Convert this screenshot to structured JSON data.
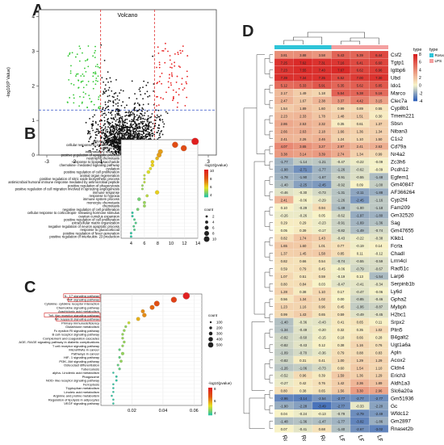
{
  "panels": {
    "a": "A",
    "b": "B",
    "c": "C",
    "d": "D"
  },
  "chart_data": [
    {
      "type": "scatter",
      "panel": "A",
      "title": "Volcano",
      "xlabel": "",
      "ylabel": "-log10(P Value)",
      "xlim": [
        -3.3,
        3.3
      ],
      "ylim": [
        0,
        4.2
      ],
      "x_ticks": [
        -3,
        -2,
        -1,
        0,
        1,
        2,
        3
      ],
      "y_ticks": [
        0,
        1,
        2,
        3,
        4
      ],
      "fc_threshold": [
        -1,
        1
      ],
      "p_threshold": 1.3,
      "groups": [
        {
          "name": "down",
          "color": "#32c832"
        },
        {
          "name": "none",
          "color": "#111111"
        },
        {
          "name": "up",
          "color": "#e82020"
        }
      ]
    },
    {
      "type": "scatter",
      "panel": "B",
      "xlim": [
        2.5,
        14
      ],
      "x_ticks": [
        4,
        6,
        8,
        10,
        12,
        14
      ],
      "categories": [
        "defense response",
        "cellular response to interferon- beta",
        "angiogenesis",
        "inflammatory response",
        "positive regulation of apoptotic process",
        "neutrophil chemotaxis",
        "response to lipopolysaccharide",
        "chemokine- mediated signaling pathway",
        "ovulation",
        "positive regulation of cell proliferation",
        "animal organ regeneration",
        "positive regulation of nitric oxide biosynthetic process",
        "antimicrobial humoral immune response mediated by antimicrobial peptide",
        "positive regulation of phagocytosis",
        "positive regulation of cell migration involved in sprouting angiogenesis",
        "immune response",
        "response to hypoxia",
        "immune system process",
        "monocyte chemotaxis",
        "chemotaxis",
        "negative regulation of cell proliferation",
        "cellular response to corticotropin- releasing hormone stimulus",
        "ovarian cumulus expansion",
        "positive regulation of cell proliferation",
        "extracellular matrix organization",
        "negative regulation of neuron apoptotic process",
        "response to glucocorticoid",
        "positive regulation of fever generation",
        "positive regulation of interleukin- 23 production"
      ],
      "x": [
        13.6,
        10.6,
        11.9,
        8.4,
        8.2,
        7.9,
        7.2,
        7.2,
        6.9,
        6.6,
        6.0,
        6.0,
        6.0,
        5.7,
        5.7,
        7.9,
        6.4,
        5.2,
        6.0,
        6.0,
        5.0,
        4.2,
        4.2,
        4.5,
        4.7,
        4.4,
        4.5,
        4.0,
        4.0
      ],
      "size": [
        10,
        8,
        8,
        6,
        6,
        4,
        4,
        4,
        3,
        4,
        2,
        2,
        2,
        2,
        2,
        5,
        3,
        4,
        3,
        3,
        3,
        2,
        2,
        2,
        2,
        2,
        2,
        2,
        2
      ],
      "color_value": [
        12,
        10,
        10,
        8,
        8,
        7.5,
        7,
        7,
        6.5,
        6.5,
        6,
        6,
        6,
        5.5,
        5.5,
        7,
        6,
        5,
        5.5,
        5.5,
        5,
        4,
        4,
        4.5,
        4.5,
        4.5,
        4.5,
        4,
        4
      ],
      "legend_color_title": "-log10(pvalue)",
      "legend_color_ticks": [
        10,
        8,
        6,
        4
      ],
      "legend_size_title": "count",
      "legend_size_ticks": [
        2,
        4,
        6,
        8,
        10
      ],
      "colormap": [
        "#2ec4a0",
        "#e8e020",
        "#e05a10",
        "#e02020"
      ]
    },
    {
      "type": "scatter",
      "panel": "C",
      "xlim": [
        0.0,
        0.065
      ],
      "x_ticks": [
        0.02,
        0.04,
        0.06
      ],
      "categories": [
        "IL- 17 signaling pathway",
        "TNF signaling pathway",
        "Cytokine- cytokine receptor interaction",
        "Chemokine signaling pathway",
        "Arachidonic acid metabolism",
        "Toll- like receptor signaling pathway",
        "NF- kappa B signaling pathway",
        "Primary immunodeficiency",
        "Glutathione metabolism",
        "Fc epsilon RI signaling pathway",
        "B cell receptor signaling pathway",
        "Complement and coagulation cascades",
        "AGE- RAGE signaling pathway in diabetic complications",
        "T cell receptor signaling pathway",
        "MicroRNAs in cancer",
        "Pathways in cancer",
        "HIF- 1 signaling pathway",
        "PI3K- Akt signaling pathway",
        "Osteoclast differentiation",
        "Tuberculosis",
        "alpha- Linolenic acid metabolism",
        "Phagosome",
        "NOD- like receptor signaling pathway",
        "Ferroptosis",
        "Tryptophan metabolism",
        "Linoleic acid metabolism",
        "Arginine and proline metabolism",
        "Regulation of lipolysis in adipocytes",
        "VEGF signaling pathway"
      ],
      "x": [
        0.055,
        0.047,
        0.036,
        0.033,
        0.027,
        0.028,
        0.024,
        0.018,
        0.016,
        0.015,
        0.014,
        0.014,
        0.015,
        0.014,
        0.012,
        0.014,
        0.012,
        0.013,
        0.011,
        0.012,
        0.008,
        0.01,
        0.01,
        0.008,
        0.008,
        0.008,
        0.007,
        0.008,
        0.008
      ],
      "size": [
        500,
        400,
        380,
        300,
        220,
        260,
        220,
        120,
        100,
        110,
        100,
        100,
        110,
        100,
        90,
        160,
        90,
        130,
        80,
        100,
        50,
        70,
        70,
        50,
        50,
        50,
        50,
        50,
        50
      ],
      "color_value": [
        9,
        8,
        7.5,
        7,
        6.5,
        6.5,
        6,
        5,
        4.5,
        4.5,
        4.5,
        4.5,
        4.5,
        4.5,
        4,
        4.5,
        4,
        4.5,
        4,
        4,
        3.5,
        3.5,
        3.5,
        3.5,
        3.5,
        3.5,
        3.5,
        3.5,
        3.5
      ],
      "highlighted": [
        0,
        1,
        5,
        6
      ],
      "legend_size_title": "count",
      "legend_size_ticks": [
        100,
        200,
        300,
        400,
        500
      ],
      "legend_color_title": "-log10(pvalue)",
      "legend_color_ticks": [
        8,
        6,
        4
      ],
      "colormap": [
        "#2ec4a0",
        "#e8e020",
        "#e05a10",
        "#e02020"
      ]
    },
    {
      "type": "heatmap",
      "panel": "D",
      "columns": [
        "Rosvain",
        "Rosvain",
        "Rosvain",
        "LPS_2",
        "LPS_1",
        "LPS_3"
      ],
      "column_groups": [
        "Rosvain",
        "Rosvain",
        "Rosvain",
        "LPS",
        "LPS",
        "LPS"
      ],
      "legend_type_title": "type",
      "legend_types": [
        {
          "name": "Rosvain",
          "color": "#2ec4d8"
        },
        {
          "name": "LPS",
          "color": "#f4a0a0"
        }
      ],
      "color_scale_ticks": [
        8,
        6,
        4,
        2,
        0,
        -2,
        -4
      ],
      "color_scale": {
        "min": -4,
        "mid": 0,
        "max": 8,
        "low": "#3060b8",
        "midc": "#f8f4c8",
        "high": "#d82020"
      },
      "rows": [
        {
          "gene": "Csf2",
          "values": [
            3.81,
            3.88,
            3.58,
            5.43,
            5.39,
            6.44
          ]
        },
        {
          "gene": "Tgtp1",
          "values": [
            7.25,
            7.62,
            7.31,
            7.16,
            6.41,
            6.6
          ]
        },
        {
          "gene": "Igtbp6",
          "values": [
            7.23,
            7.55,
            7.4,
            7.67,
            6.62,
            6.96
          ]
        },
        {
          "gene": "Ubd",
          "values": [
            7.39,
            7.34,
            7.35,
            6.52,
            7.0,
            7.3
          ]
        },
        {
          "gene": "Ido1",
          "values": [
            5.12,
            5.33,
            5.91,
            5.35,
            5.62,
            5.85
          ]
        },
        {
          "gene": "Marco",
          "values": [
            2.17,
            1.49,
            1.18,
            5.54,
            5.38,
            5.16
          ]
        },
        {
          "gene": "Clec7a",
          "values": [
            2.47,
            1.67,
            2.38,
            3.37,
            4.42,
            3.15
          ]
        },
        {
          "gene": "Cyp8b1",
          "values": [
            1.54,
            1.89,
            1.6,
            0.99,
            0.89,
            0.55
          ]
        },
        {
          "gene": "Tmem221",
          "values": [
            2.23,
            2.33,
            1.78,
            1.48,
            1.51,
            0.3
          ]
        },
        {
          "gene": "Sbsn",
          "values": [
            2.86,
            2.53,
            2.32,
            0.35,
            0.61,
            1.37
          ]
        },
        {
          "gene": "Niban3",
          "values": [
            2.66,
            2.63,
            2.18,
            1.66,
            1.36,
            1.34
          ]
        },
        {
          "gene": "C1s2",
          "values": [
            2.41,
            2.26,
            2.46,
            1.24,
            1.1,
            1.5
          ]
        },
        {
          "gene": "Cd79a",
          "values": [
            4.07,
            3.65,
            3.27,
            2.97,
            2.41,
            2.63
          ]
        },
        {
          "gene": "Nr4a2",
          "values": [
            3.38,
            3.14,
            3.39,
            2.74,
            1.34,
            0.99
          ]
        },
        {
          "gene": "Zc3h6",
          "values": [
            -1.77,
            -1.14,
            -1.21,
            -0.47,
            -0.22,
            -0.09
          ]
        },
        {
          "gene": "Pcdh12",
          "values": [
            -1.98,
            -2.71,
            -1.77,
            -1.26,
            -0.62,
            -0.09
          ]
        },
        {
          "gene": "Egfem1",
          "values": [
            -1.78,
            -1.9,
            -1.67,
            -0.91,
            -0.55,
            -1.48
          ]
        },
        {
          "gene": "Gm40847",
          "values": [
            -1.4,
            -2.25,
            -2.45,
            -0.92,
            0.09,
            -1.0
          ]
        },
        {
          "gene": "AF366264",
          "values": [
            -0.46,
            -0.3,
            -0.73,
            -1.31,
            -2.11,
            -1.88
          ]
        },
        {
          "gene": "Cyp2f4",
          "values": [
            2.41,
            -0.06,
            -0.29,
            -1.26,
            -2.45,
            -1.16
          ]
        },
        {
          "gene": "Fam209",
          "values": [
            0.1,
            -0.29,
            0.94,
            -1.49,
            -1.0,
            -1.18
          ]
        },
        {
          "gene": "Gm32520",
          "values": [
            -0.26,
            -0.26,
            0.05,
            -0.62,
            -1.97,
            -1.8
          ]
        },
        {
          "gene": "Sag",
          "values": [
            0.29,
            0.29,
            -0.23,
            -0.91,
            -1.69,
            -1.36
          ]
        },
        {
          "gene": "Gm47655",
          "values": [
            0.05,
            0.39,
            -0.17,
            -0.82,
            -1.49,
            -0.74
          ]
        },
        {
          "gene": "Klkb1",
          "values": [
            0.82,
            1.74,
            1.43,
            -0.43,
            -0.22,
            -0.38
          ]
        },
        {
          "gene": "Fcrla",
          "values": [
            1.65,
            1.6,
            1.01,
            0.77,
            -0.19,
            0.14
          ]
        },
        {
          "gene": "Chadl",
          "values": [
            1.37,
            1.45,
            1.58,
            0.85,
            0.11,
            -0.12
          ]
        },
        {
          "gene": "Lrrn4cl",
          "values": [
            0.82,
            0.66,
            0.54,
            -0.74,
            -0.55,
            -0.59
          ]
        },
        {
          "gene": "Rad51c",
          "values": [
            0.59,
            0.79,
            0.45,
            -0.06,
            -0.79,
            -0.67
          ]
        },
        {
          "gene": "Larp6",
          "values": [
            1.07,
            0.51,
            0.59,
            -0.19,
            0.13,
            -1.54
          ]
        },
        {
          "gene": "Serpinb1b",
          "values": [
            0.8,
            0.84,
            0.03,
            -0.47,
            -0.41,
            -0.34
          ]
        },
        {
          "gene": "Ly6d",
          "values": [
            1.28,
            0.38,
            1.1,
            0.17,
            -0.47,
            -0.06
          ]
        },
        {
          "gene": "Gpha2",
          "values": [
            0.56,
            1.34,
            1.02,
            0.0,
            -0.85,
            -0.46
          ]
        },
        {
          "gene": "Mybph",
          "values": [
            1.23,
            1.16,
            0.96,
            0.45,
            -1.06,
            -0.87
          ]
        },
        {
          "gene": "H2bc1",
          "values": [
            0.99,
            1.43,
            0.65,
            0.59,
            -0.49,
            -0.45
          ]
        },
        {
          "gene": "Srpx2",
          "values": [
            -1.4,
            -0.36,
            -0.43,
            0.41,
            0.65,
            0.11
          ]
        },
        {
          "gene": "Plin5",
          "values": [
            -1.34,
            -0.49,
            -0.2,
            0.32,
            0.35,
            1.02
          ]
        },
        {
          "gene": "B4galt2",
          "values": [
            -0.82,
            -0.6,
            -0.15,
            0.18,
            0.66,
            0.28
          ]
        },
        {
          "gene": "Ugt1a6a",
          "values": [
            -0.82,
            -0.43,
            0.12,
            0.38,
            1.16,
            0.76
          ]
        },
        {
          "gene": "Apln",
          "values": [
            -1.09,
            -0.7,
            -0.36,
            0.79,
            0.88,
            0.83
          ]
        },
        {
          "gene": "Acox2",
          "values": [
            -0.82,
            0.31,
            0.41,
            1.0,
            1.29,
            1.29
          ]
        },
        {
          "gene": "Cldn4",
          "values": [
            -1.26,
            -1.06,
            -0.73,
            0.6,
            1.54,
            1.1
          ]
        },
        {
          "gene": "Erich3",
          "values": [
            -0.52,
            0.96,
            0.39,
            1.59,
            1.36,
            1.29
          ]
        },
        {
          "gene": "Aldh1a3",
          "values": [
            -0.27,
            0.42,
            0.76,
            1.42,
            2.36,
            1.89
          ]
        },
        {
          "gene": "Slc6a20a",
          "values": [
            0.8,
            0.38,
            0.65,
            1.56,
            3.3,
            2.96
          ]
        },
        {
          "gene": "Gm51936",
          "values": [
            -2.96,
            -3.14,
            -2.54,
            -2.77,
            -2.77,
            -2.77
          ]
        },
        {
          "gene": "Gc",
          "values": [
            -1.9,
            -2.28,
            -3.49,
            -2.77,
            -0.33,
            -2.2
          ]
        },
        {
          "gene": "Wfdc12",
          "values": [
            0.04,
            -0.24,
            -0.13,
            -0.79,
            -2.79,
            -2.49
          ]
        },
        {
          "gene": "Gm2897",
          "values": [
            -1.48,
            -1.36,
            -1.47,
            -1.77,
            -3.02,
            -1.86
          ]
        },
        {
          "gene": "Rnaset2b",
          "values": [
            0.07,
            -0.41,
            0.68,
            -1.4,
            -2.67,
            -3.02
          ]
        }
      ]
    }
  ]
}
